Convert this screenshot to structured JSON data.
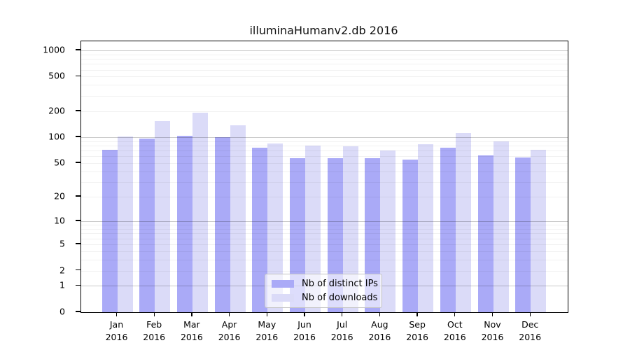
{
  "title": "illuminaHumanv2.db 2016",
  "legend": {
    "items": [
      {
        "label": "Nb of distinct IPs",
        "color": "#aaaaf7"
      },
      {
        "label": "Nb of downloads",
        "color": "#dbdbf8"
      }
    ],
    "position": "lower center"
  },
  "chart_data": {
    "type": "bar",
    "title": "illuminaHumanv2.db 2016",
    "scale": "pseudo-log (position = log10(value+1))",
    "categories": [
      "Jan 2016",
      "Feb 2016",
      "Mar 2016",
      "Apr 2016",
      "May 2016",
      "Jun 2016",
      "Jul 2016",
      "Aug 2016",
      "Sep 2016",
      "Oct 2016",
      "Nov 2016",
      "Dec 2016"
    ],
    "x_tick_line1": [
      "Jan",
      "Feb",
      "Mar",
      "Apr",
      "May",
      "Jun",
      "Jul",
      "Aug",
      "Sep",
      "Oct",
      "Nov",
      "Dec"
    ],
    "x_tick_line2": "2016",
    "series": [
      {
        "name": "Nb of distinct IPs",
        "color": "#aaaaf7",
        "values": [
          72,
          96,
          104,
          100,
          76,
          57,
          57,
          57,
          55,
          76,
          62,
          58
        ]
      },
      {
        "name": "Nb of downloads",
        "color": "#dbdbf8",
        "values": [
          103,
          155,
          193,
          137,
          85,
          80,
          79,
          70,
          83,
          112,
          90,
          71
        ]
      }
    ],
    "yticks": [
      0,
      1,
      2,
      5,
      10,
      20,
      50,
      100,
      200,
      500,
      1000
    ],
    "ylim": [
      0,
      1270
    ],
    "xlabel": "",
    "ylabel": "",
    "grid": true,
    "legend_position": "lower center"
  }
}
